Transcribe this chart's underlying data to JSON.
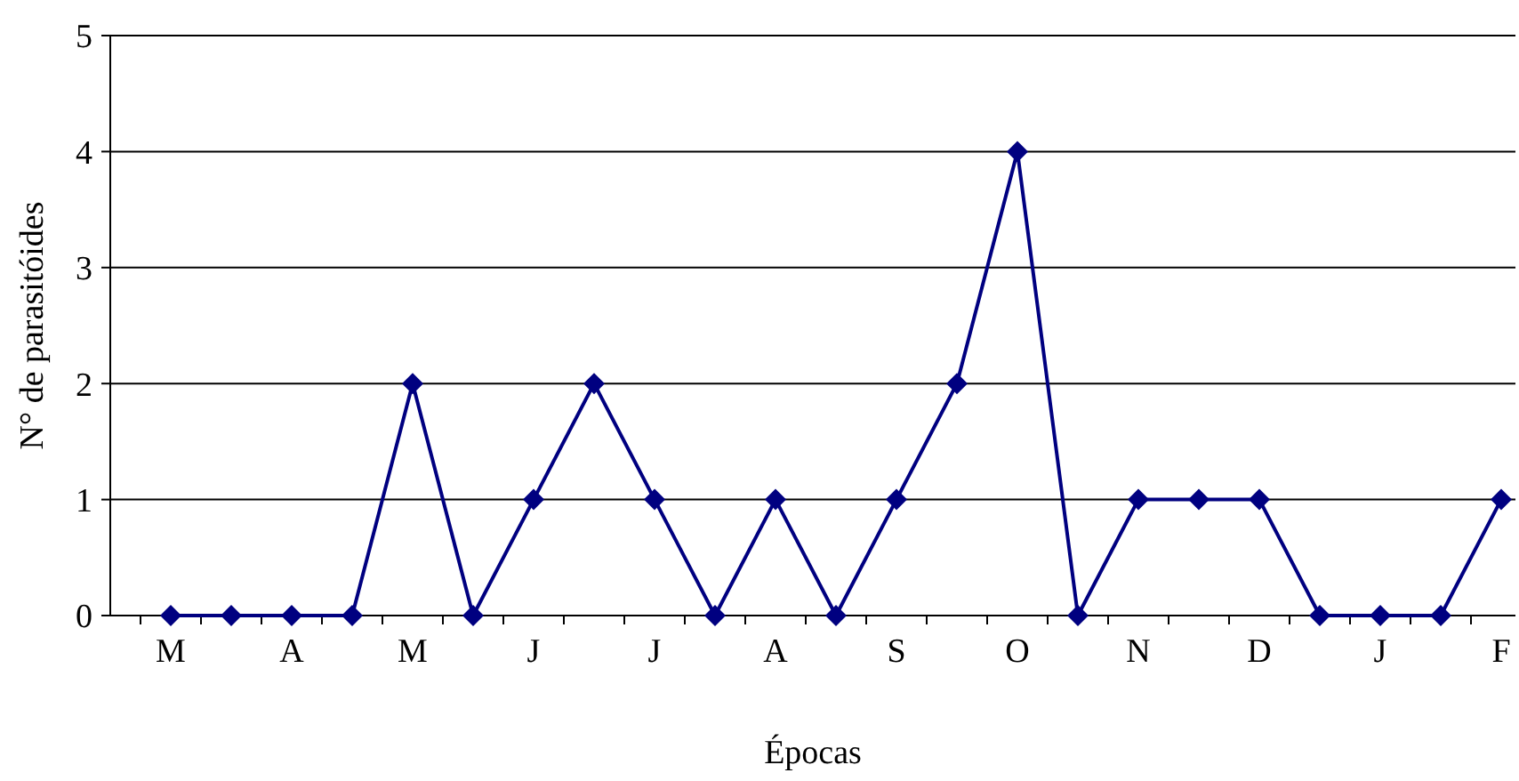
{
  "chart_data": {
    "type": "line",
    "xlabel": "Épocas",
    "ylabel": "N° de parasitóides",
    "categories": [
      "M",
      null,
      "A",
      null,
      "M",
      null,
      "J",
      null,
      "J",
      null,
      "A",
      null,
      "S",
      null,
      "O",
      null,
      "N",
      null,
      "D",
      null,
      "J",
      null,
      "F"
    ],
    "series": [
      {
        "color": "#000080",
        "values": [
          0,
          0,
          0,
          0,
          2,
          0,
          1,
          2,
          1,
          0,
          1,
          0,
          1,
          2,
          4,
          0,
          1,
          1,
          1,
          0,
          0,
          0,
          1
        ]
      }
    ],
    "ylim": [
      0,
      5
    ],
    "yticks": [
      0,
      1,
      2,
      3,
      4,
      5
    ],
    "grid": "y",
    "marker": "diamond",
    "line_style": "solid"
  }
}
